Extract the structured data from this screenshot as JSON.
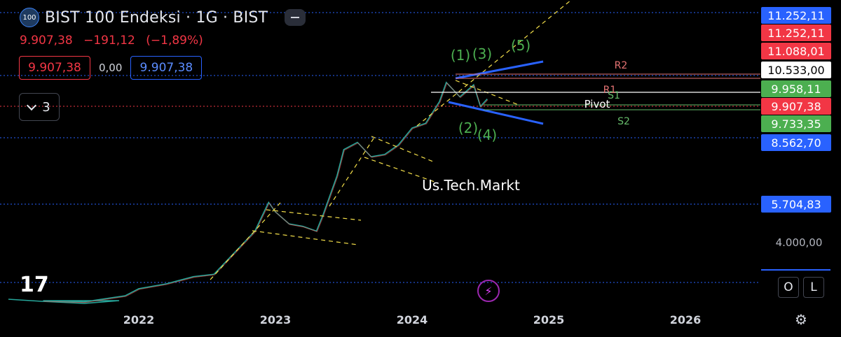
{
  "header": {
    "symbol_badge": "100",
    "title": "BIST 100 Endeksi · 1G · BIST",
    "last_price": "9.907,38",
    "change": "−191,12",
    "change_pct": "(−1,89%)",
    "bid": "9.907,38",
    "spread": "0,00",
    "ask": "9.907,38",
    "indicators_count": "3"
  },
  "ui": {
    "logo": "17",
    "flash_icon": "lightning-icon",
    "o_label": "O",
    "l_label": "L",
    "settings_icon": "gear-icon"
  },
  "colors": {
    "price": "#f23645",
    "wave_labels": "#4caf50",
    "trend_lines": "#2962ff",
    "dashed_guides": "#f5e04a",
    "pivot_r": "#e57373",
    "pivot_s": "#66bb6a"
  },
  "chart_data": {
    "type": "line",
    "x_axis": {
      "ticks": [
        "2022",
        "2023",
        "2024",
        "2025",
        "2026"
      ]
    },
    "y_axis": {
      "ticks": [
        "4.000,00",
        "5.704,83",
        "8.562,70",
        "10.533,00"
      ],
      "ylim": [
        1500,
        11500
      ]
    },
    "series": [
      {
        "values_x": [
          2021.3,
          2021.6,
          2021.9,
          2022.0,
          2022.2,
          2022.4,
          2022.55,
          2022.7,
          2022.85,
          2022.95,
          2023.0,
          2023.1,
          2023.2,
          2023.3,
          2023.35,
          2023.45,
          2023.5,
          2023.6,
          2023.7,
          2023.8,
          2023.9,
          2024.0,
          2024.1,
          2024.2,
          2024.25,
          2024.35,
          2024.45,
          2024.5,
          2024.55
        ],
        "values_y": [
          1500,
          1450,
          1700,
          2000,
          2200,
          2500,
          2600,
          3500,
          4400,
          5600,
          5200,
          4700,
          4600,
          4400,
          5100,
          6700,
          7800,
          8100,
          7500,
          7600,
          8000,
          8700,
          8900,
          9800,
          10600,
          10000,
          10500,
          9600,
          9907
        ]
      }
    ],
    "price_labels": [
      {
        "value": "11.252,11",
        "color": "#2962ff"
      },
      {
        "value": "11.252,11",
        "color": "#f23645"
      },
      {
        "value": "11.088,01",
        "color": "#f23645"
      },
      {
        "value": "10.533,00",
        "color": "#ffffff"
      },
      {
        "value": "9.958,11",
        "color": "#4caf50"
      },
      {
        "value": "9.907,38",
        "color": "#f23645"
      },
      {
        "value": "9.733,35",
        "color": "#4caf50"
      },
      {
        "value": "8.562,70",
        "color": "#2962ff"
      },
      {
        "value": "5.704,83",
        "color": "#2962ff"
      }
    ],
    "annotations": [
      {
        "text": "(1)",
        "color": "#4caf50"
      },
      {
        "text": "(3)",
        "color": "#4caf50"
      },
      {
        "text": "(5)",
        "color": "#4caf50"
      },
      {
        "text": "(2)",
        "color": "#4caf50"
      },
      {
        "text": "(4)",
        "color": "#4caf50"
      },
      {
        "text": "R2",
        "color": "#e57373"
      },
      {
        "text": "R1",
        "color": "#e57373"
      },
      {
        "text": "S1",
        "color": "#66bb6a"
      },
      {
        "text": "Pivot",
        "color": "#ffffff"
      },
      {
        "text": "S2",
        "color": "#66bb6a"
      },
      {
        "text": "Us.Tech.Markt",
        "color": "#ffffff"
      }
    ]
  }
}
